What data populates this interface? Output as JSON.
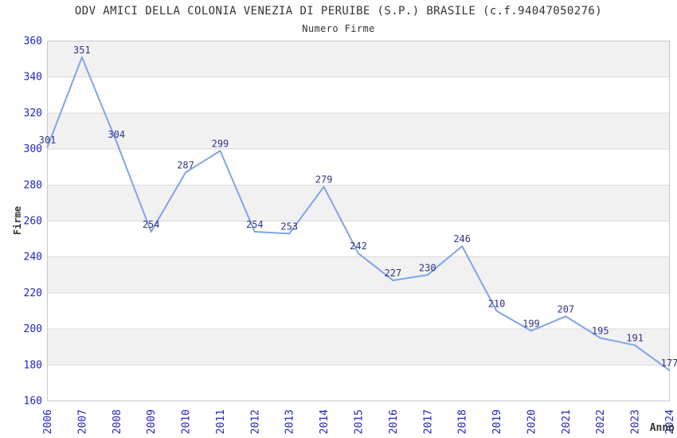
{
  "header": {
    "title": "ODV AMICI DELLA COLONIA VENEZIA DI PERUIBE (S.P.) BRASILE (c.f.94047050276)",
    "subtitle": "Numero Firme"
  },
  "chart_data": {
    "type": "line",
    "title": "ODV AMICI DELLA COLONIA VENEZIA DI PERUIBE (S.P.) BRASILE (c.f.94047050276)",
    "subtitle": "Numero Firme",
    "xlabel": "Anno",
    "ylabel": "Firme",
    "categories": [
      "2006",
      "2007",
      "2008",
      "2009",
      "2010",
      "2011",
      "2012",
      "2013",
      "2014",
      "2015",
      "2016",
      "2017",
      "2018",
      "2019",
      "2020",
      "2021",
      "2022",
      "2023",
      "2024"
    ],
    "series": [
      {
        "name": "Numero Firme",
        "values": [
          301,
          351,
          304,
          254,
          287,
          299,
          254,
          253,
          279,
          242,
          227,
          230,
          246,
          210,
          199,
          207,
          195,
          191,
          177
        ]
      }
    ],
    "ylim": [
      160,
      360
    ],
    "ytick_step": 20,
    "yticks": [
      360,
      340,
      320,
      300,
      280,
      260,
      240,
      220,
      200,
      180,
      160
    ],
    "grid": "horizontal",
    "band_rows": "alternating-gray-from-top",
    "legend_position": "none",
    "data_labels": true
  },
  "colors": {
    "line": "#7FA4E8",
    "tick_label": "#2323C8",
    "data_label": "#323289",
    "axis_title": "#333333",
    "title_text": "#333333",
    "band": "#F1F1F1",
    "grid": "#D9D9D9",
    "border": "#C9C9C9",
    "background": "#FFFFFF"
  }
}
